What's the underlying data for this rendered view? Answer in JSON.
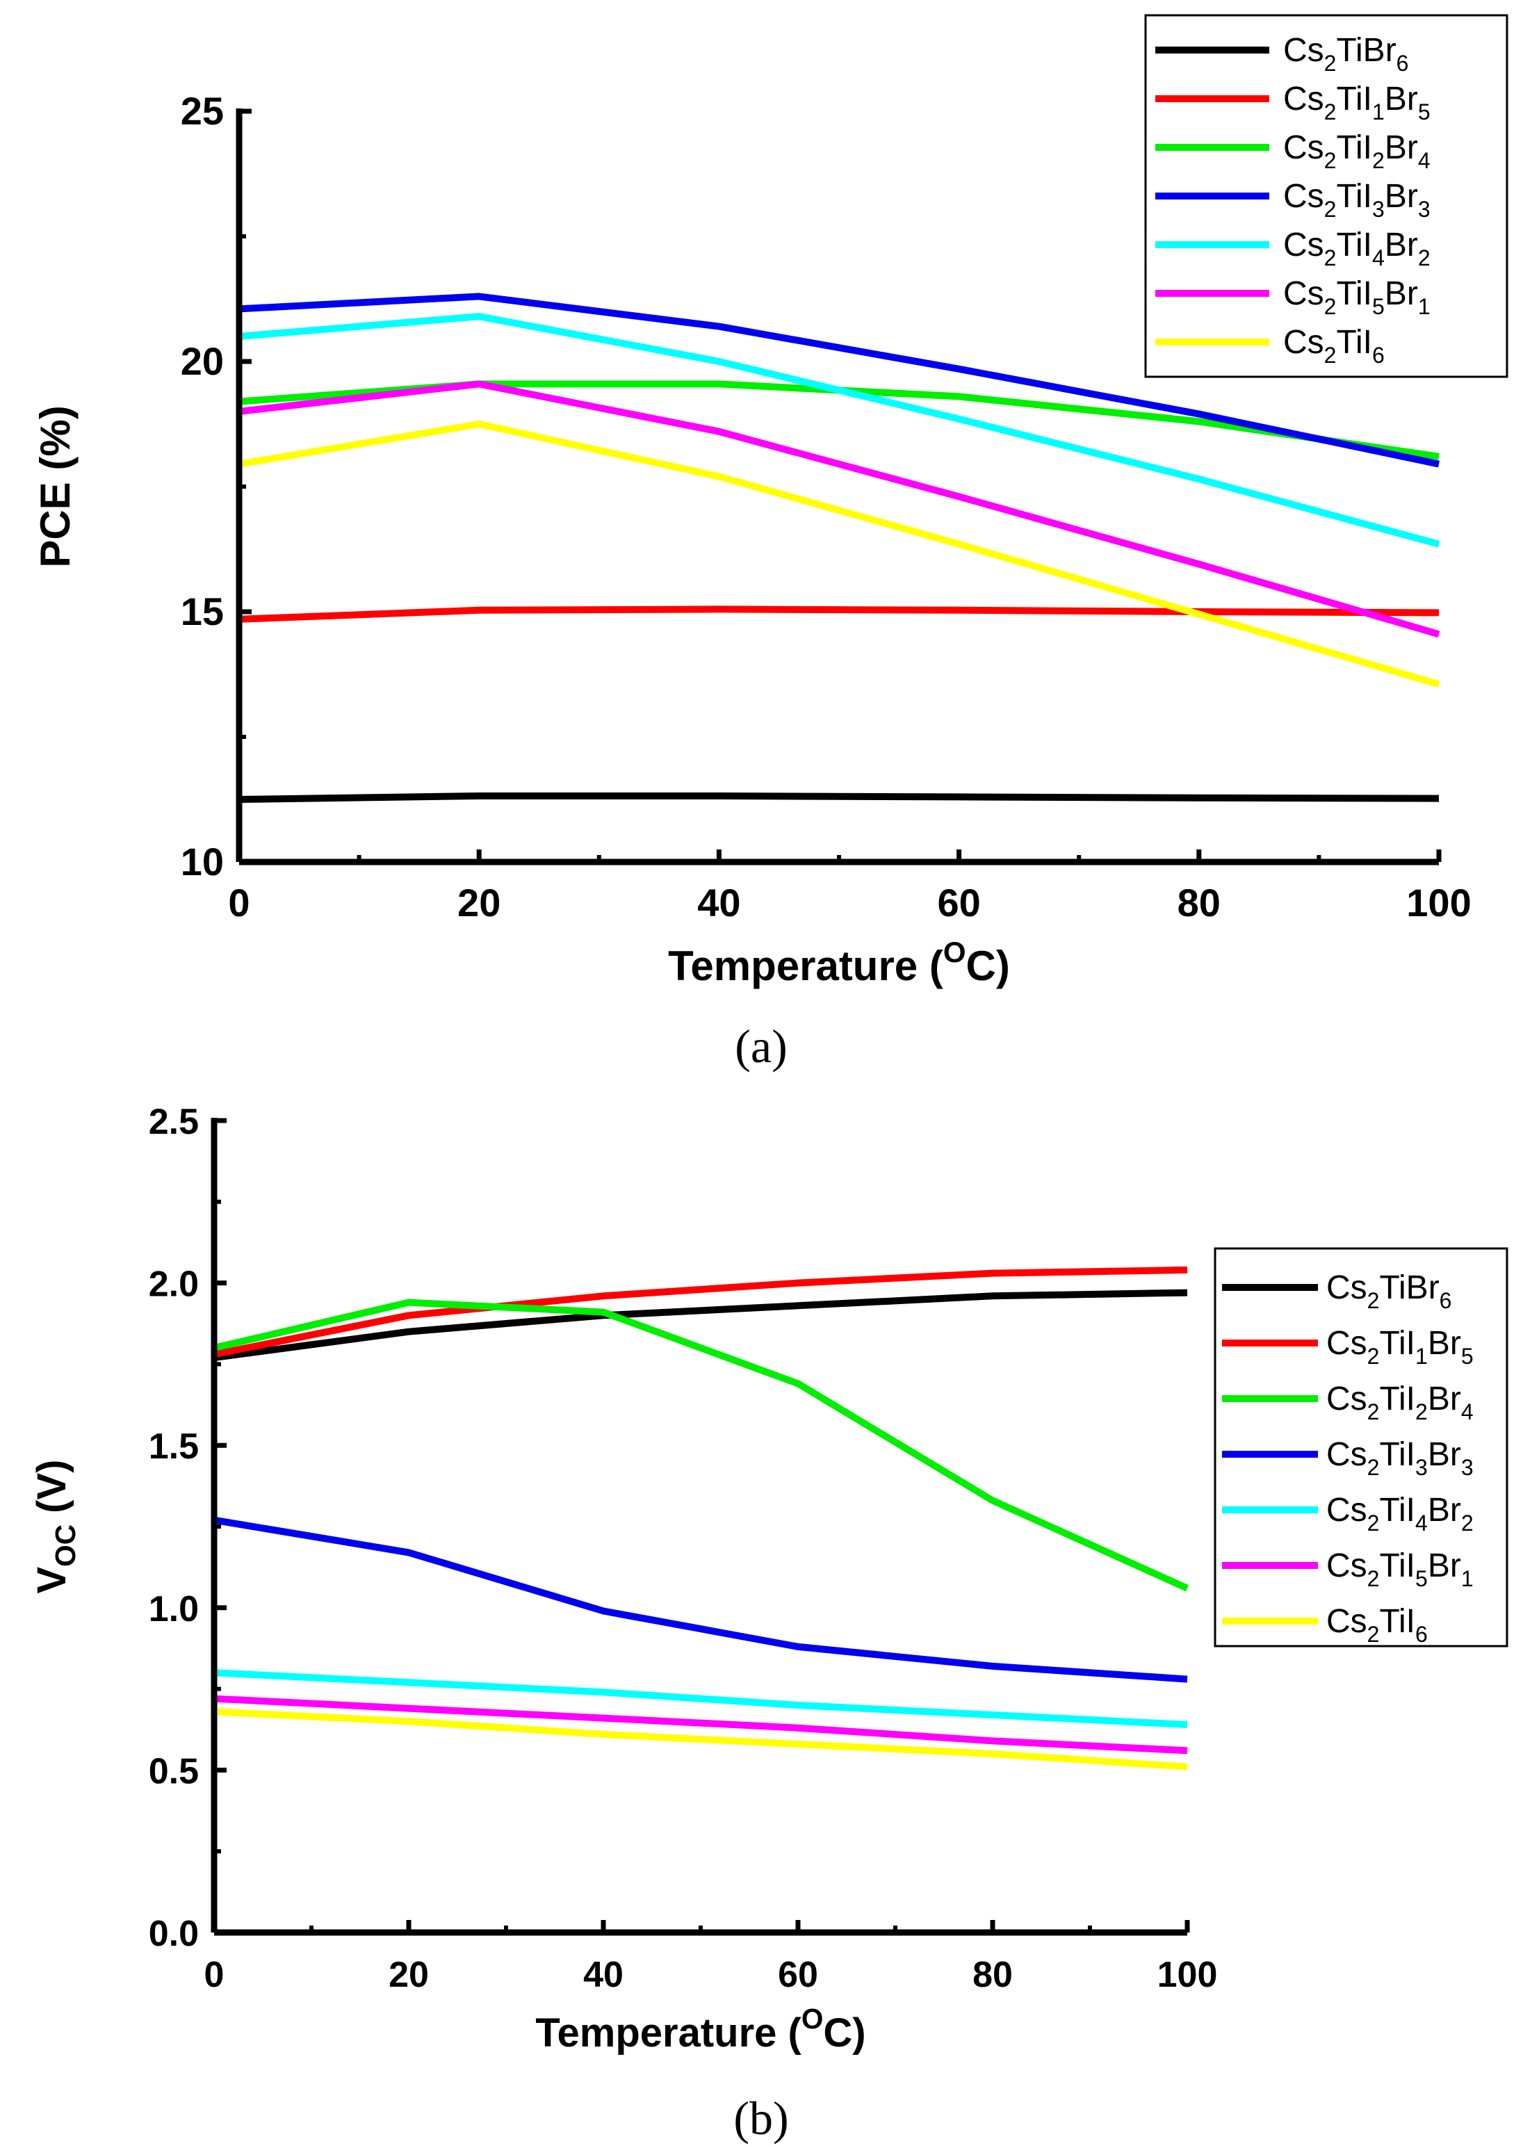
{
  "chart_data": [
    {
      "type": "line",
      "panel_label": "a",
      "xlabel": "Temperature (",
      "xlabel_sup": "O",
      "xlabel_end": "C)",
      "ylabel": "PCE (%)",
      "xlim": [
        0,
        100
      ],
      "ylim": [
        10,
        25
      ],
      "xticks": [
        "0",
        "20",
        "40",
        "60",
        "80",
        "100"
      ],
      "yticks": [
        "10",
        "15",
        "20",
        "25"
      ],
      "x": [
        0,
        20,
        40,
        60,
        80,
        100
      ],
      "series": [
        {
          "name": "Cs2TiBr6",
          "color": "#000000",
          "values": [
            11.25,
            11.32,
            11.32,
            11.3,
            11.28,
            11.27
          ]
        },
        {
          "name": "Cs2TiI1Br5",
          "color": "#ff0000",
          "values": [
            14.85,
            15.03,
            15.05,
            15.03,
            15.0,
            14.98
          ]
        },
        {
          "name": "Cs2TiI2Br4",
          "color": "#00ee00",
          "values": [
            19.2,
            19.55,
            19.55,
            19.3,
            18.8,
            18.1
          ]
        },
        {
          "name": "Cs2TiI3Br3",
          "color": "#0000ee",
          "values": [
            21.05,
            21.3,
            20.7,
            19.85,
            18.95,
            17.95
          ]
        },
        {
          "name": "Cs2TiI4Br2",
          "color": "#00ffff",
          "values": [
            20.5,
            20.9,
            20.0,
            18.85,
            17.65,
            16.35
          ]
        },
        {
          "name": "Cs2TiI5Br1",
          "color": "#ff00ff",
          "values": [
            19.0,
            19.55,
            18.6,
            17.3,
            15.95,
            14.55
          ]
        },
        {
          "name": "Cs2TiI6",
          "color": "#ffff00",
          "values": [
            17.95,
            18.75,
            17.7,
            16.35,
            14.95,
            13.55
          ]
        }
      ]
    },
    {
      "type": "line",
      "panel_label": "b",
      "xlabel": "Temperature (",
      "xlabel_sup": "O",
      "xlabel_end": "C)",
      "ylabel": "V",
      "ylabel_sub": "OC",
      "ylabel_end": " (V)",
      "xlim": [
        0,
        100
      ],
      "ylim": [
        0,
        2.5
      ],
      "xticks": [
        "0",
        "20",
        "40",
        "60",
        "80",
        "100"
      ],
      "yticks": [
        "0.0",
        "0.5",
        "1.0",
        "1.5",
        "2.0",
        "2.5"
      ],
      "x": [
        0,
        20,
        40,
        60,
        80,
        100
      ],
      "series": [
        {
          "name": "Cs2TiBr6",
          "color": "#000000",
          "values": [
            1.77,
            1.85,
            1.9,
            1.93,
            1.96,
            1.97
          ]
        },
        {
          "name": "Cs2TiI1Br5",
          "color": "#ff0000",
          "values": [
            1.78,
            1.9,
            1.96,
            2.0,
            2.03,
            2.04
          ]
        },
        {
          "name": "Cs2TiI2Br4",
          "color": "#00ee00",
          "values": [
            1.8,
            1.94,
            1.91,
            1.69,
            1.33,
            1.06
          ]
        },
        {
          "name": "Cs2TiI3Br3",
          "color": "#0000ee",
          "values": [
            1.27,
            1.17,
            0.99,
            0.88,
            0.82,
            0.78
          ]
        },
        {
          "name": "Cs2TiI4Br2",
          "color": "#00ffff",
          "values": [
            0.8,
            0.77,
            0.74,
            0.7,
            0.67,
            0.64
          ]
        },
        {
          "name": "Cs2TiI5Br1",
          "color": "#ff00ff",
          "values": [
            0.72,
            0.69,
            0.66,
            0.63,
            0.59,
            0.56
          ]
        },
        {
          "name": "Cs2TiI6",
          "color": "#ffff00",
          "values": [
            0.68,
            0.65,
            0.61,
            0.58,
            0.55,
            0.51
          ]
        }
      ]
    }
  ],
  "legend_labels": [
    {
      "pre": "Cs",
      "s1": "2",
      "mid1": "TiBr",
      "s2": "6",
      "mid2": "",
      "s3": ""
    },
    {
      "pre": "Cs",
      "s1": "2",
      "mid1": "TiI",
      "s2": "1",
      "mid2": "Br",
      "s3": "5"
    },
    {
      "pre": "Cs",
      "s1": "2",
      "mid1": "TiI",
      "s2": "2",
      "mid2": "Br",
      "s3": "4"
    },
    {
      "pre": "Cs",
      "s1": "2",
      "mid1": "TiI",
      "s2": "3",
      "mid2": "Br",
      "s3": "3"
    },
    {
      "pre": "Cs",
      "s1": "2",
      "mid1": "TiI",
      "s2": "4",
      "mid2": "Br",
      "s3": "2"
    },
    {
      "pre": "Cs",
      "s1": "2",
      "mid1": "TiI",
      "s2": "5",
      "mid2": "Br",
      "s3": "1"
    },
    {
      "pre": "Cs",
      "s1": "2",
      "mid1": "TiI",
      "s2": "6",
      "mid2": "",
      "s3": ""
    }
  ],
  "captions": [
    "(a)",
    "(b)"
  ]
}
